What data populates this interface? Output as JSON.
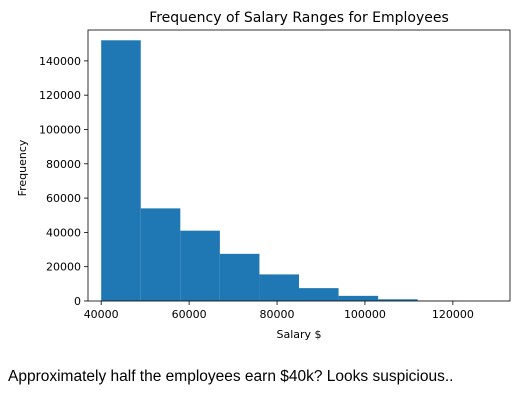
{
  "caption": "Approximately half the employees earn $40k? Looks suspicious..",
  "chart_data": {
    "type": "bar",
    "title": "Frequency of Salary Ranges for Employees",
    "xlabel": "Salary $",
    "ylabel": "Frequency",
    "xlim": [
      37000,
      133000
    ],
    "ylim": [
      0,
      158000
    ],
    "xticks": [
      40000,
      60000,
      80000,
      100000,
      120000
    ],
    "yticks": [
      0,
      20000,
      40000,
      60000,
      80000,
      100000,
      120000,
      140000
    ],
    "bins": [
      {
        "start": 40000,
        "end": 49000,
        "value": 152000
      },
      {
        "start": 49000,
        "end": 58000,
        "value": 54000
      },
      {
        "start": 58000,
        "end": 67000,
        "value": 41000
      },
      {
        "start": 67000,
        "end": 76000,
        "value": 27500
      },
      {
        "start": 76000,
        "end": 85000,
        "value": 15500
      },
      {
        "start": 85000,
        "end": 94000,
        "value": 7500
      },
      {
        "start": 94000,
        "end": 103000,
        "value": 3000
      },
      {
        "start": 103000,
        "end": 112000,
        "value": 1000
      },
      {
        "start": 112000,
        "end": 121000,
        "value": 200
      },
      {
        "start": 121000,
        "end": 130000,
        "value": 50
      }
    ],
    "bar_color": "#1f77b4",
    "grid": false,
    "legend": "none"
  }
}
